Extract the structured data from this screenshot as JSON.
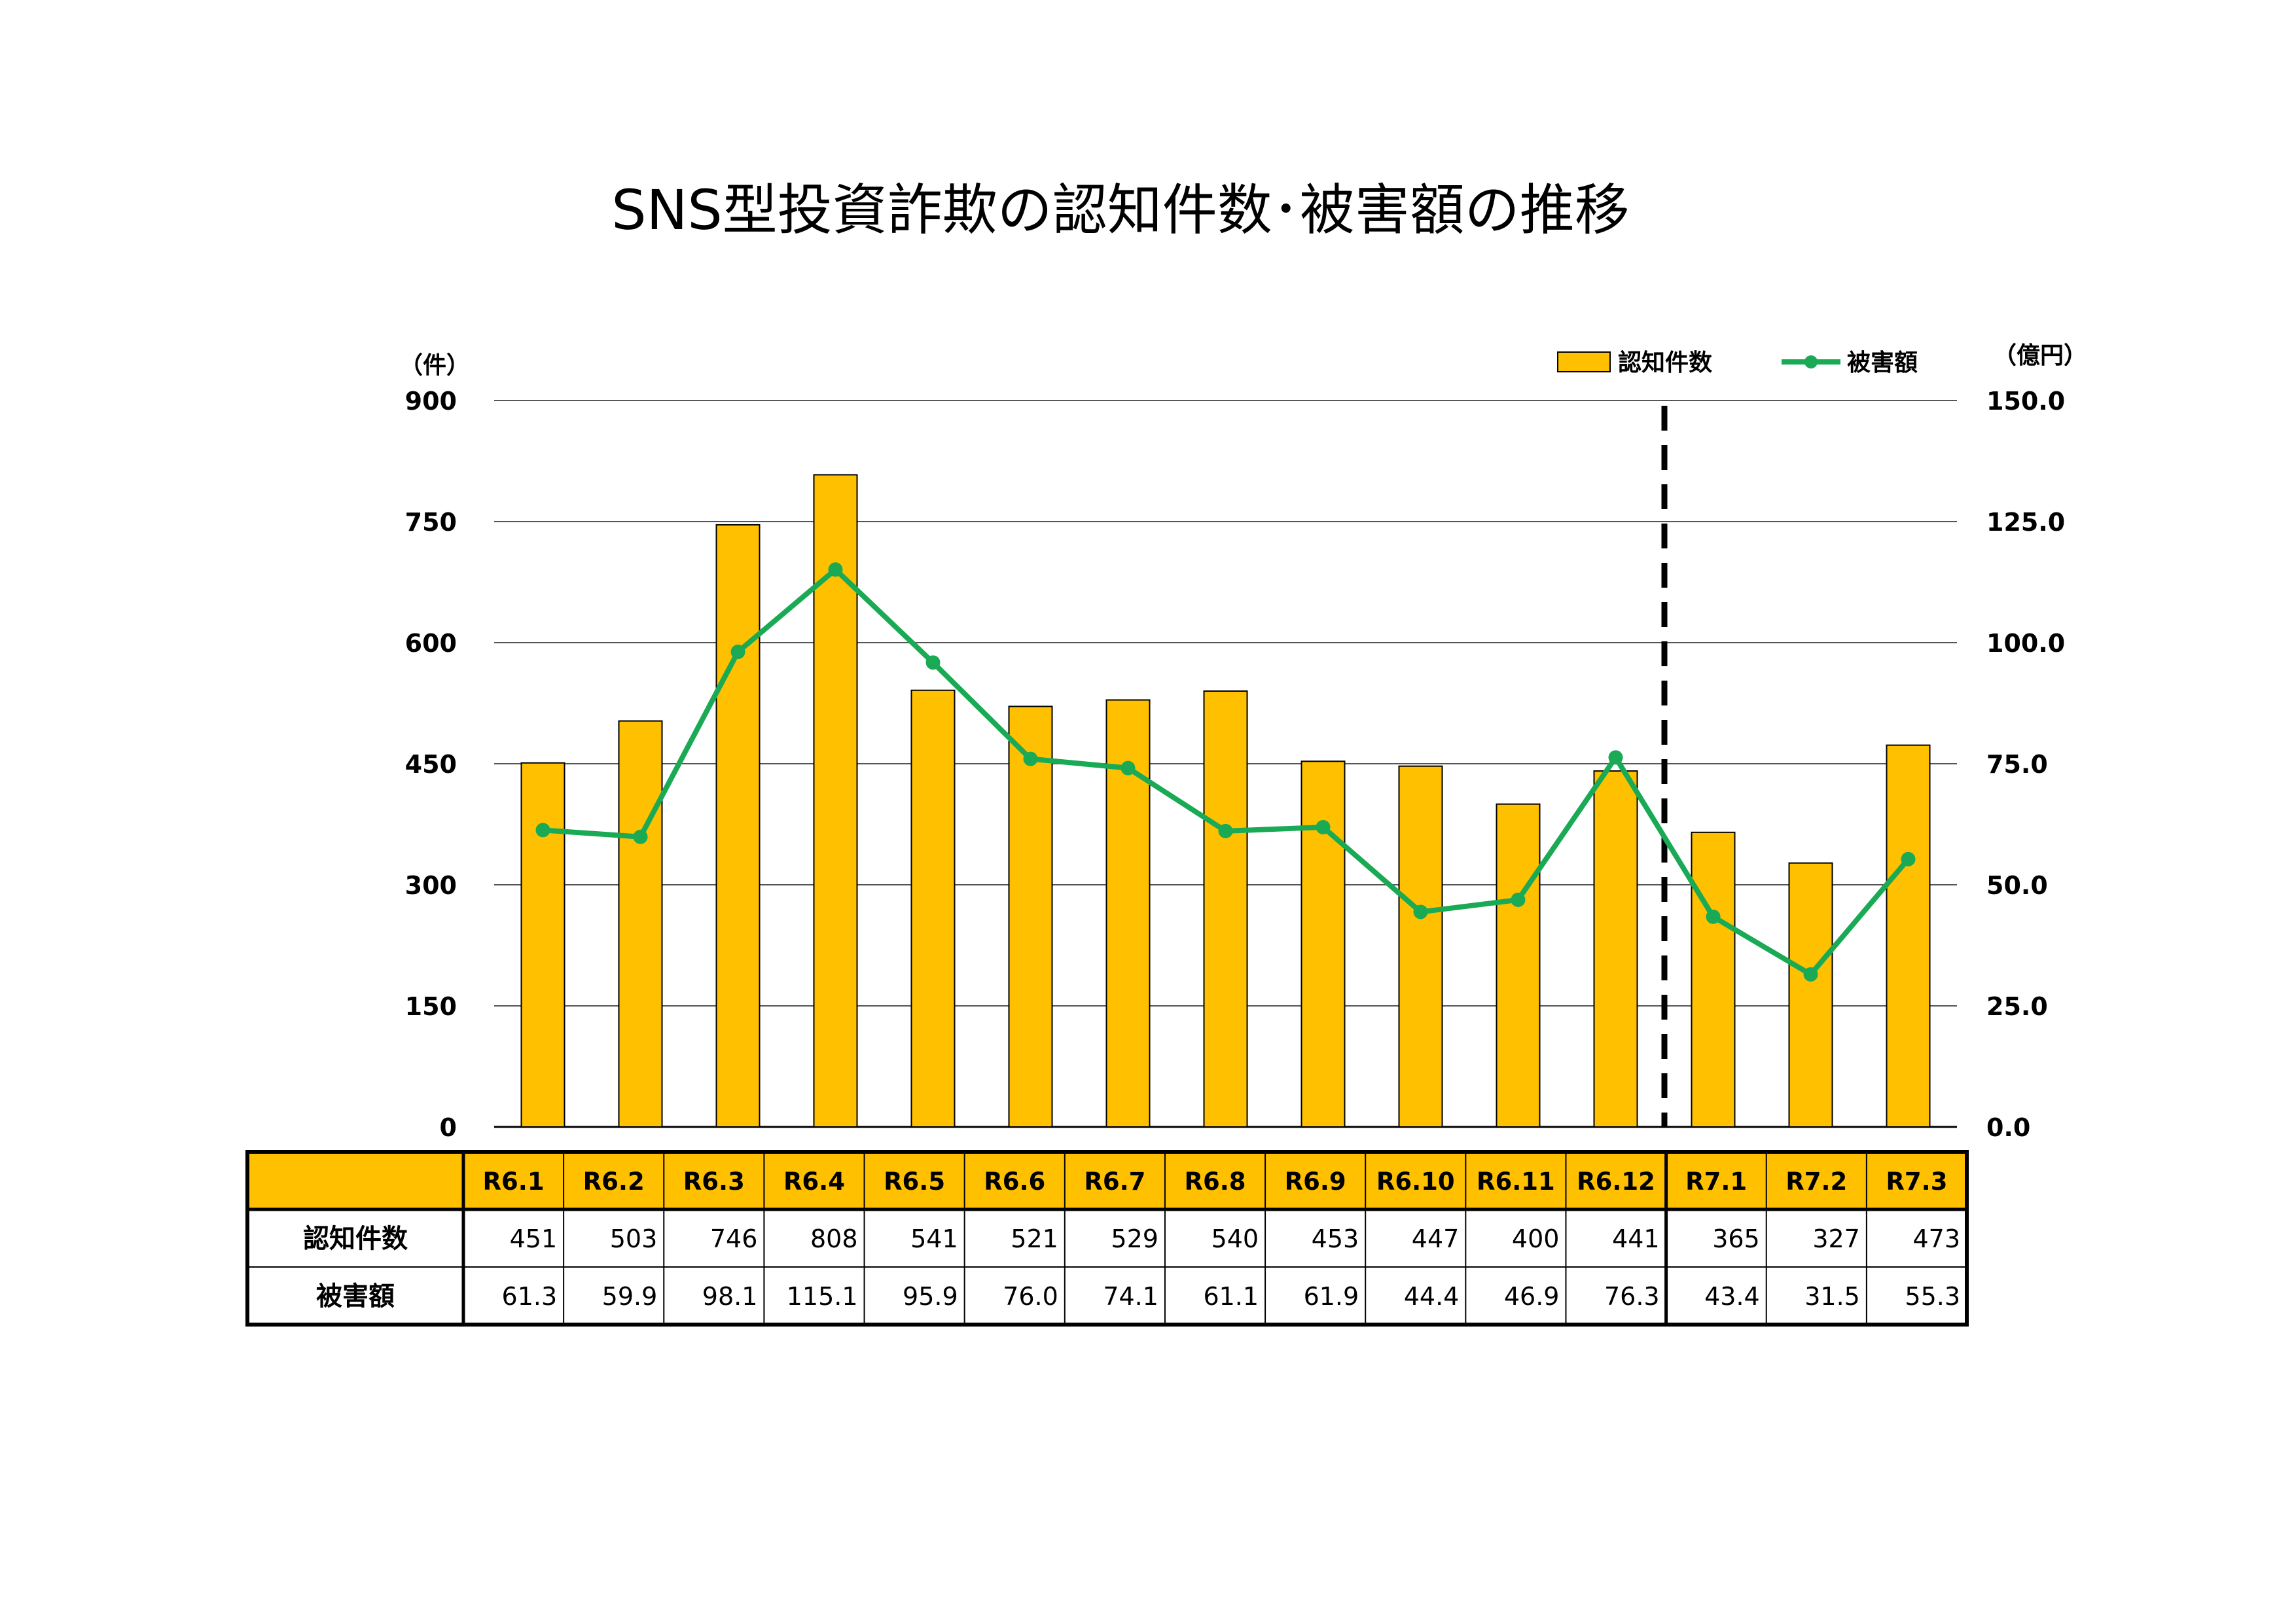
{
  "chart_data": {
    "type": "bar",
    "title": "SNS型投資詐欺の認知件数･被害額の推移",
    "categories": [
      "R6.1",
      "R6.2",
      "R6.3",
      "R6.4",
      "R6.5",
      "R6.6",
      "R6.7",
      "R6.8",
      "R6.9",
      "R6.10",
      "R6.11",
      "R6.12",
      "R7.1",
      "R7.2",
      "R7.3"
    ],
    "series": [
      {
        "name": "認知件数",
        "type": "bar",
        "axis": "left",
        "color": "#FFC000",
        "values": [
          451,
          503,
          746,
          808,
          541,
          521,
          529,
          540,
          453,
          447,
          400,
          441,
          365,
          327,
          473
        ],
        "labels": [
          "451",
          "503",
          "746",
          "808",
          "541",
          "521",
          "529",
          "540",
          "453",
          "447",
          "400",
          "441",
          "365",
          "327",
          "473"
        ]
      },
      {
        "name": "被害額",
        "type": "line",
        "axis": "right",
        "color": "#1AAA55",
        "values": [
          61.3,
          59.9,
          98.1,
          115.1,
          95.9,
          76.0,
          74.1,
          61.1,
          61.9,
          44.4,
          46.9,
          76.3,
          43.4,
          31.5,
          55.3
        ],
        "labels": [
          "61.3",
          "59.9",
          "98.1",
          "115.1",
          "95.9",
          "76.0",
          "74.1",
          "61.1",
          "61.9",
          "44.4",
          "46.9",
          "76.3",
          "43.4",
          "31.5",
          "55.3"
        ]
      }
    ],
    "y_left": {
      "unit": "（件）",
      "ylim": [
        0,
        900
      ],
      "ticks": [
        "0",
        "150",
        "300",
        "450",
        "600",
        "750",
        "900"
      ]
    },
    "y_right": {
      "unit": "（億円）",
      "ylim": [
        0,
        150
      ],
      "ticks": [
        "0.0",
        "25.0",
        "50.0",
        "75.0",
        "100.0",
        "125.0",
        "150.0"
      ]
    },
    "grid": true,
    "legend": "top-right",
    "divider_after_category": "R6.12",
    "table": {
      "row_labels": [
        "認知件数",
        "被害額"
      ]
    }
  }
}
